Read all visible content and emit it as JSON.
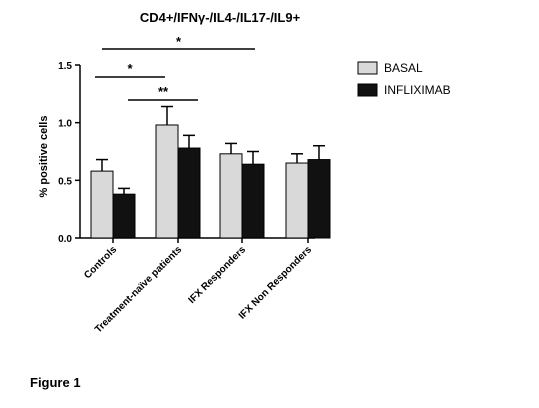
{
  "caption": "Figure 1",
  "chart_data": {
    "type": "bar",
    "title": "CD4+/IFNγ-/IL4-/IL17-/IL9+",
    "ylabel": "% positive cells",
    "xlabel": "",
    "ylim": [
      0,
      1.5
    ],
    "yticks": [
      0.0,
      0.5,
      1.0,
      1.5
    ],
    "ytick_labels": [
      "0.0",
      "0.5",
      "1.0",
      "1.5"
    ],
    "categories": [
      "Controls",
      "Treatment-naïve patients",
      "IFX Responders",
      "IFX Non Responders"
    ],
    "series": [
      {
        "name": "BASAL",
        "color": "#d9d9d9",
        "values": [
          0.58,
          0.98,
          0.73,
          0.65
        ],
        "errors": [
          0.1,
          0.16,
          0.09,
          0.08
        ]
      },
      {
        "name": "INFLIXIMAB",
        "color": "#111111",
        "values": [
          0.38,
          0.78,
          0.64,
          0.68
        ],
        "errors": [
          0.05,
          0.11,
          0.11,
          0.12
        ]
      }
    ],
    "legend_position": "top-right",
    "significance": [
      {
        "label": "*",
        "from": "Controls",
        "to": "IFX Responders",
        "y": 1.6
      },
      {
        "label": "*",
        "from": "Controls",
        "to": "Treatment-naïve patients",
        "y": 1.4
      },
      {
        "label": "**",
        "from": "Controls",
        "to": "Treatment-naïve patients",
        "y": 1.18
      }
    ]
  }
}
